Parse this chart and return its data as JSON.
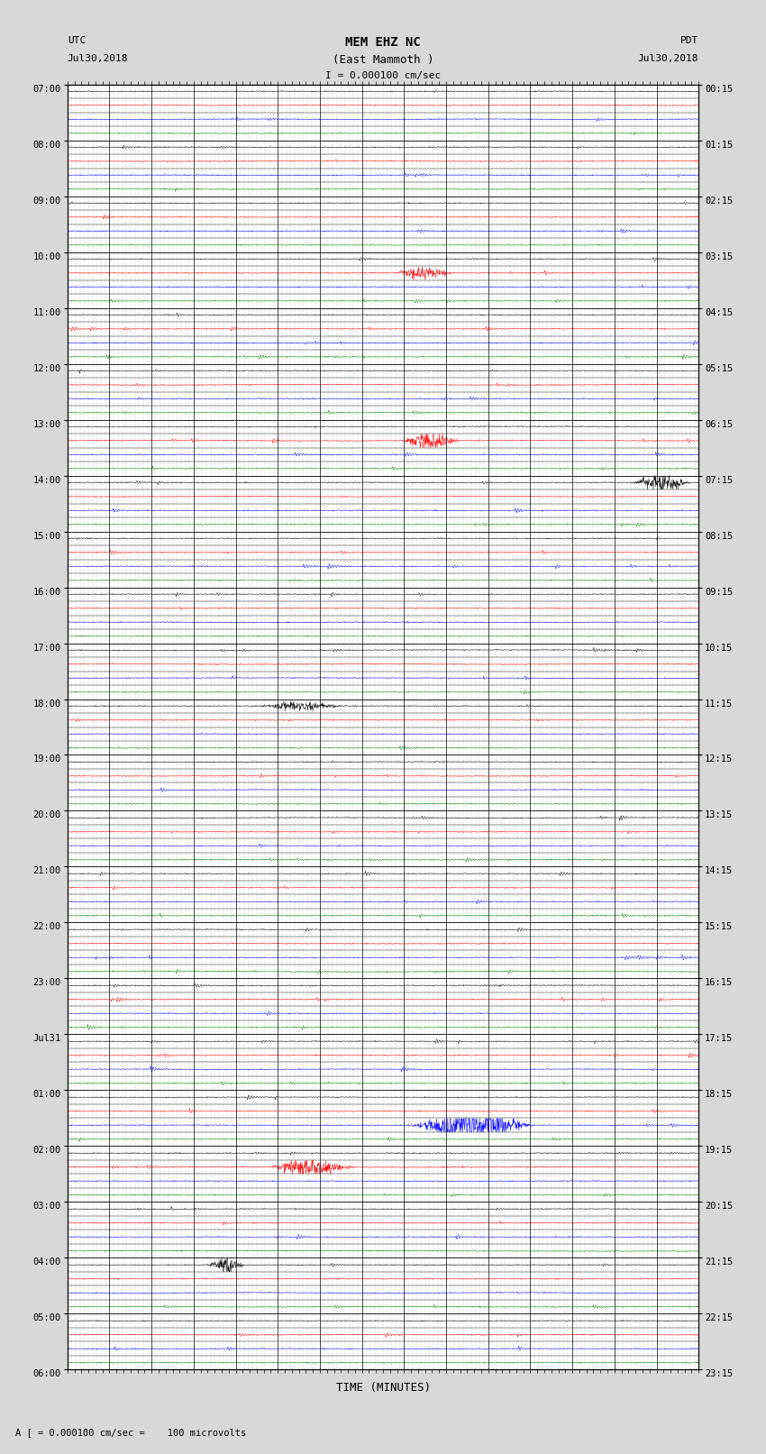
{
  "title_line1": "MEM EHZ NC",
  "title_line2": "(East Mammoth )",
  "title_line3": "I = 0.000100 cm/sec",
  "left_header_line1": "UTC",
  "left_header_line2": "Jul30,2018",
  "right_header_line1": "PDT",
  "right_header_line2": "Jul30,2018",
  "xlabel": "TIME (MINUTES)",
  "footnote": "A [ = 0.000100 cm/sec =    100 microvolts",
  "utc_labels": [
    "07:00",
    "",
    "",
    "",
    "08:00",
    "",
    "",
    "",
    "09:00",
    "",
    "",
    "",
    "10:00",
    "",
    "",
    "",
    "11:00",
    "",
    "",
    "",
    "12:00",
    "",
    "",
    "",
    "13:00",
    "",
    "",
    "",
    "14:00",
    "",
    "",
    "",
    "15:00",
    "",
    "",
    "",
    "16:00",
    "",
    "",
    "",
    "17:00",
    "",
    "",
    "",
    "18:00",
    "",
    "",
    "",
    "19:00",
    "",
    "",
    "",
    "20:00",
    "",
    "",
    "",
    "21:00",
    "",
    "",
    "",
    "22:00",
    "",
    "",
    "",
    "23:00",
    "",
    "",
    "",
    "Jul31",
    "",
    "",
    "",
    "01:00",
    "",
    "",
    "",
    "02:00",
    "",
    "",
    "",
    "03:00",
    "",
    "",
    "",
    "04:00",
    "",
    "",
    "",
    "05:00",
    "",
    "",
    "",
    "06:00",
    "",
    "",
    ""
  ],
  "pdt_labels": [
    "00:15",
    "",
    "",
    "",
    "01:15",
    "",
    "",
    "",
    "02:15",
    "",
    "",
    "",
    "03:15",
    "",
    "",
    "",
    "04:15",
    "",
    "",
    "",
    "05:15",
    "",
    "",
    "",
    "06:15",
    "",
    "",
    "",
    "07:15",
    "",
    "",
    "",
    "08:15",
    "",
    "",
    "",
    "09:15",
    "",
    "",
    "",
    "10:15",
    "",
    "",
    "",
    "11:15",
    "",
    "",
    "",
    "12:15",
    "",
    "",
    "",
    "13:15",
    "",
    "",
    "",
    "14:15",
    "",
    "",
    "",
    "15:15",
    "",
    "",
    "",
    "16:15",
    "",
    "",
    "",
    "17:15",
    "",
    "",
    "",
    "18:15",
    "",
    "",
    "",
    "19:15",
    "",
    "",
    "",
    "20:15",
    "",
    "",
    "",
    "21:15",
    "",
    "",
    "",
    "22:15",
    "",
    "",
    "",
    "23:15",
    "",
    "",
    ""
  ],
  "n_rows": 92,
  "n_minutes": 15,
  "row_colors": [
    "black",
    "red",
    "blue",
    "green"
  ],
  "background_color": "#d8d8d8",
  "plot_bg_color": "white",
  "grid_color": "#888888",
  "seed": 42
}
